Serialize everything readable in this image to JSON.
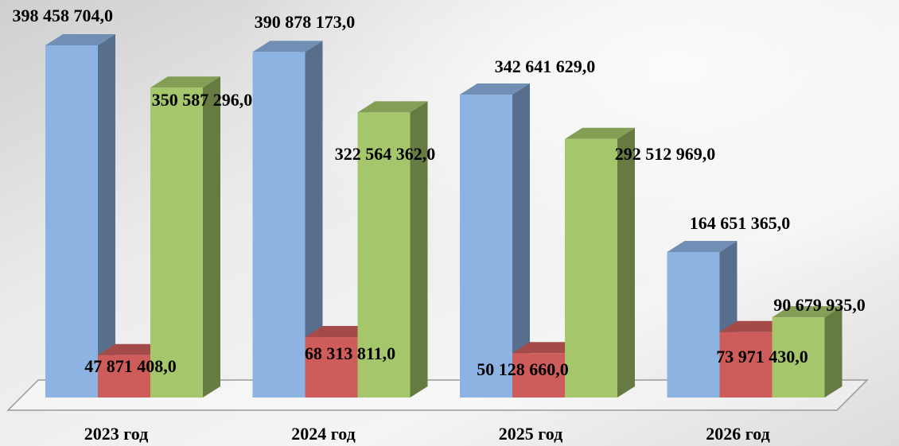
{
  "chart_data": {
    "type": "bar3d",
    "categories": [
      "2023 год",
      "2024 год",
      "2025 год",
      "2026 год"
    ],
    "series": [
      {
        "color": "#8db3e2",
        "values": [
          398458704,
          390878173,
          342641629,
          164651365
        ],
        "value_labels": [
          "398 458 704,0",
          "390 878 173,0",
          "342 641 629,0",
          "164 651 365,0"
        ]
      },
      {
        "color": "#cd5c5a",
        "values": [
          47871408,
          68313811,
          50128660,
          73971430
        ],
        "value_labels": [
          "47 871 408,0",
          "68 313 811,0",
          "50 128 660,0",
          "73 971 430,0"
        ]
      },
      {
        "color": "#a5c66b",
        "values": [
          350587296,
          322564362,
          292512969,
          90679935
        ],
        "value_labels": [
          "350 587 296,0",
          "322 564 362,0",
          "292 512 969,0",
          "90 679 935,0"
        ]
      }
    ]
  }
}
